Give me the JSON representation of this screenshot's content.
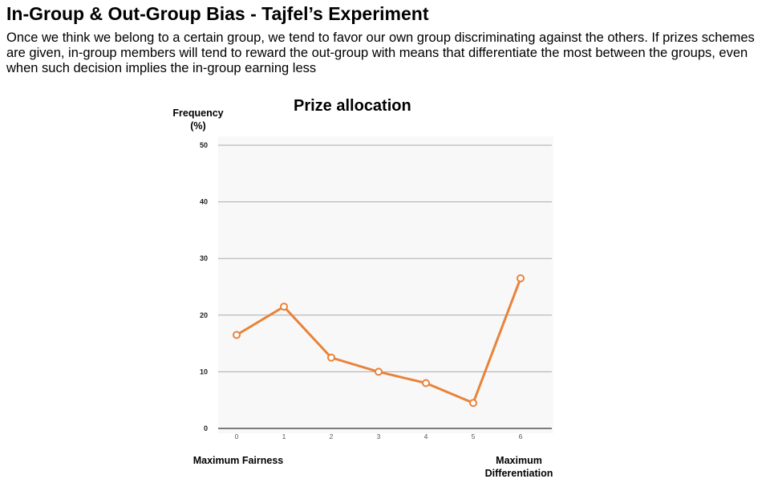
{
  "slide": {
    "title": "In-Group & Out-Group Bias - Tajfel’s Experiment",
    "body": "Once we think we belong to a certain group, we tend to favor our own group discriminating against the others. If prizes schemes are given, in-group members will tend to reward the out-group with means that differentiate the most between the groups, even when such decision implies the in-group earning less"
  },
  "chart_data": {
    "type": "line",
    "title": "Prize allocation",
    "ylabel": "Frequency (%)",
    "x": [
      0,
      1,
      2,
      3,
      4,
      5,
      6
    ],
    "values": [
      16.5,
      21.5,
      12.5,
      10,
      8,
      4.5,
      26.5
    ],
    "ylim": [
      0,
      50
    ],
    "yticks": [
      0,
      10,
      20,
      30,
      40,
      50
    ],
    "xticks": [
      "0",
      "1",
      "2",
      "3",
      "4",
      "5",
      "6"
    ],
    "grid": true,
    "line_color": "#e8833a",
    "grid_color": "#aaaaaa",
    "annotations": {
      "left": "Maximum Fairness",
      "right": "Maximum Differentiation"
    }
  }
}
